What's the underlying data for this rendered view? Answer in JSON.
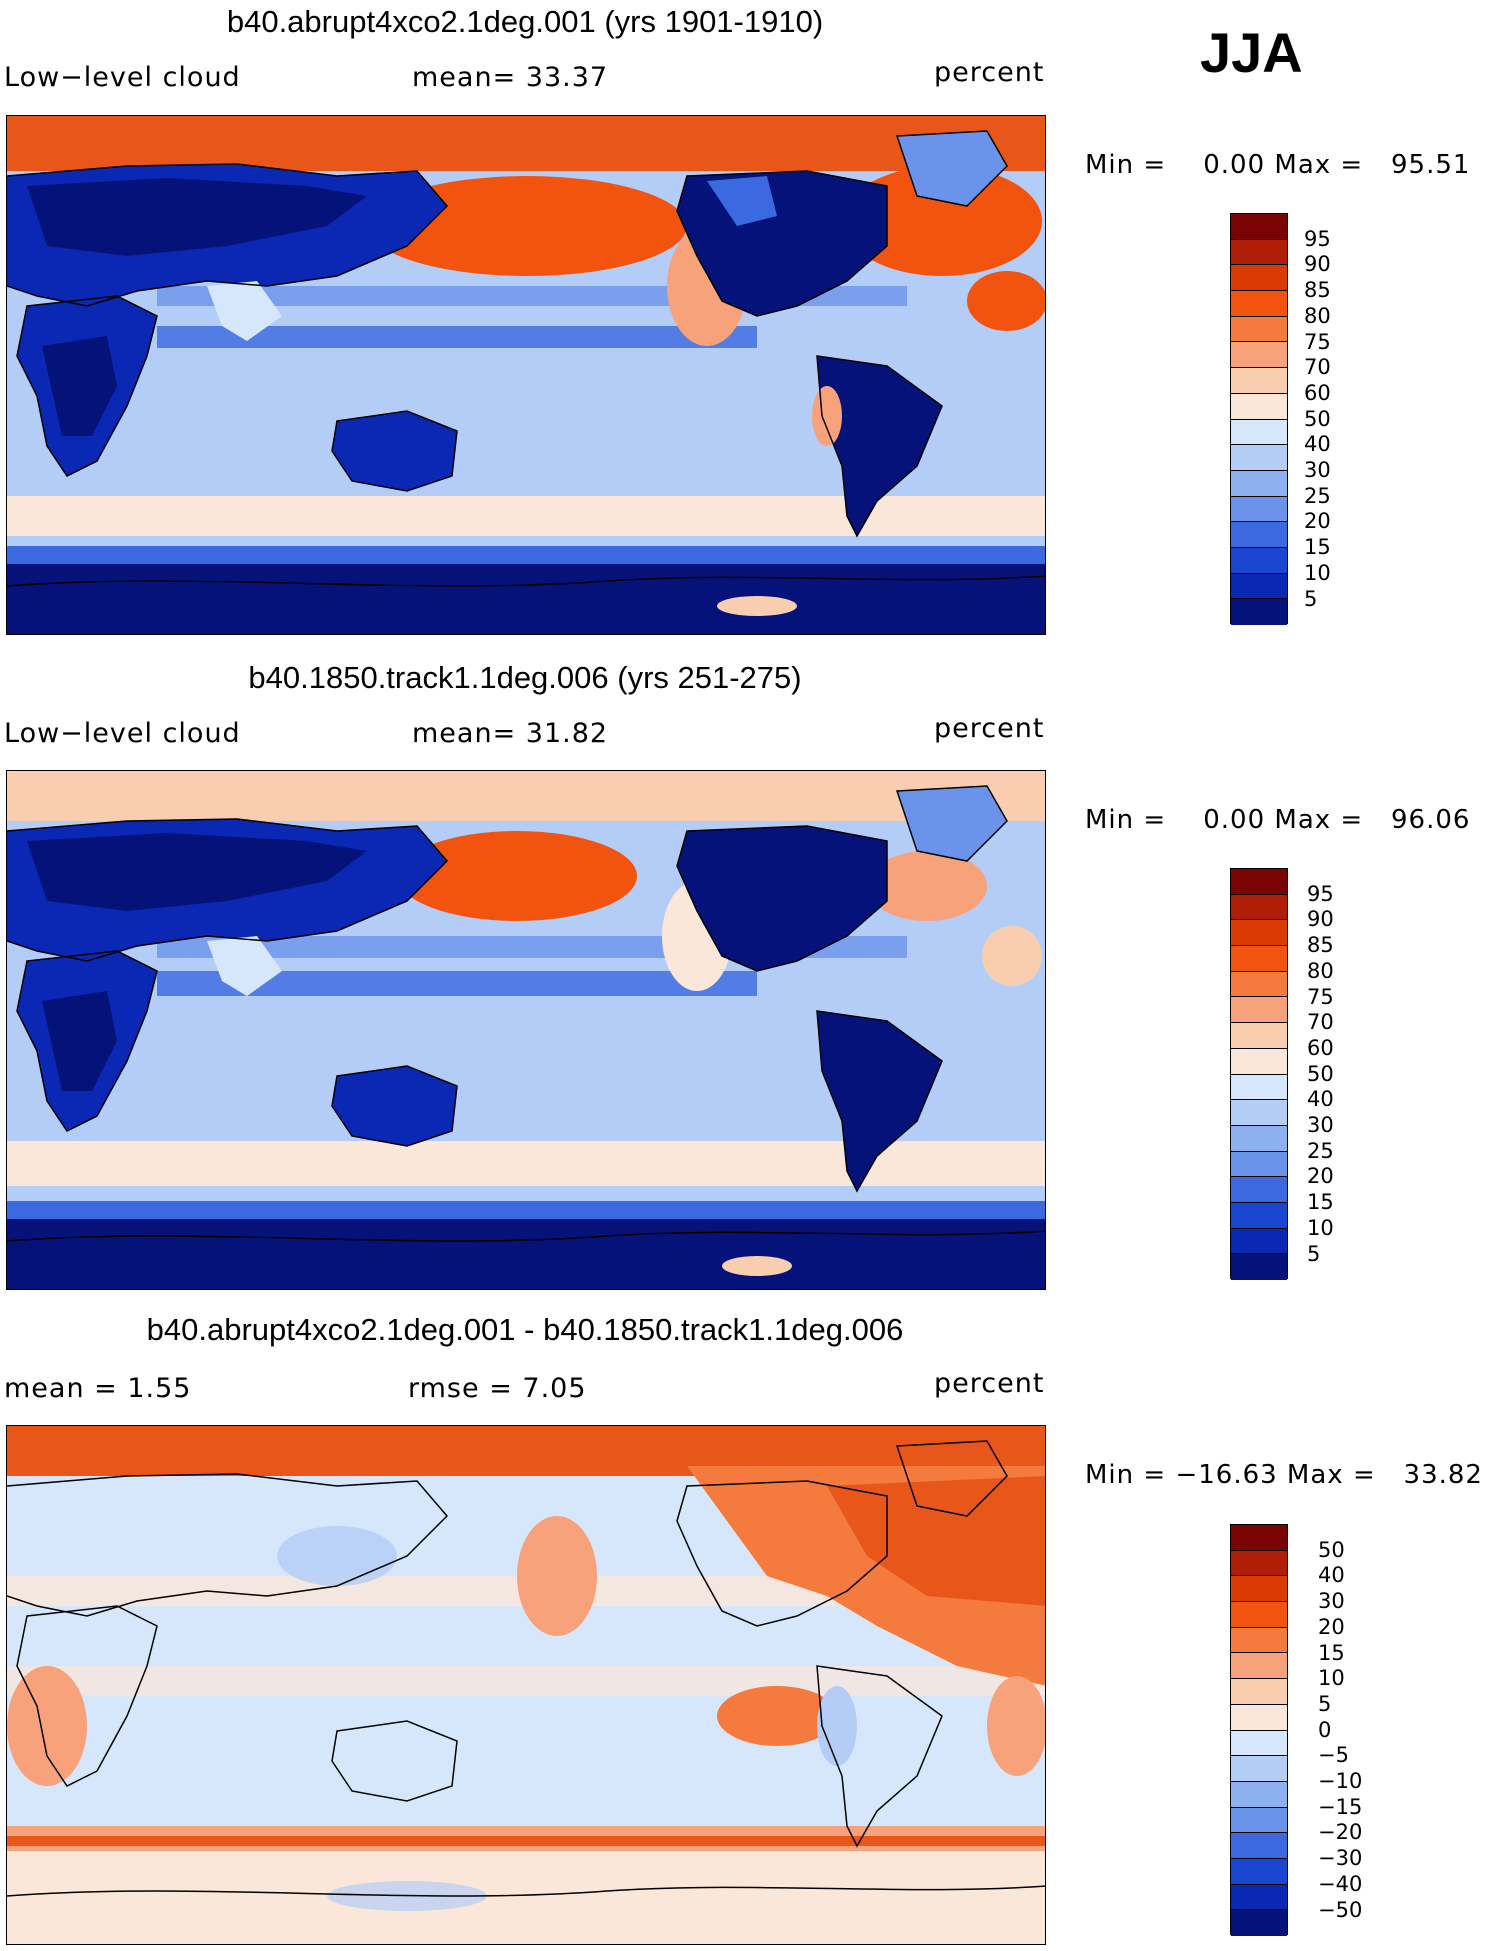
{
  "season": "JJA",
  "unit": "percent",
  "panels": [
    {
      "title": "b40.abrupt4xco2.1deg.001 (yrs 1901-1910)",
      "left_label": "Low−level cloud",
      "mid_label": "mean=   33.37",
      "right_label": "percent",
      "minmax": "Min =    0.00 Max =   95.51",
      "colorbar_labels": [
        "95",
        "90",
        "85",
        "80",
        "75",
        "70",
        "60",
        "50",
        "40",
        "30",
        "25",
        "20",
        "15",
        "10",
        "5"
      ]
    },
    {
      "title": "b40.1850.track1.1deg.006 (yrs 251-275)",
      "left_label": "Low−level cloud",
      "mid_label": "mean=   31.82",
      "right_label": "percent",
      "minmax": "Min =    0.00 Max =   96.06",
      "colorbar_labels": [
        "95",
        "90",
        "85",
        "80",
        "75",
        "70",
        "60",
        "50",
        "40",
        "30",
        "25",
        "20",
        "15",
        "10",
        "5"
      ]
    },
    {
      "title": "b40.abrupt4xco2.1deg.001 - b40.1850.track1.1deg.006",
      "left_label": "mean =    1.55",
      "mid_label": "rmse =    7.05",
      "right_label": "percent",
      "minmax": "Min = −16.63 Max =   33.82",
      "colorbar_labels": [
        "50",
        "40",
        "30",
        "20",
        "15",
        "10",
        "5",
        "0",
        "−5",
        "−10",
        "−15",
        "−20",
        "−30",
        "−40",
        "−50"
      ]
    }
  ],
  "colorbar_colors": [
    "#7a0403",
    "#b01d08",
    "#d93a06",
    "#f2540f",
    "#f57a3d",
    "#f7a27a",
    "#f9cdb0",
    "#fbe7da",
    "#d6e7fb",
    "#b3cdf6",
    "#8eb0f0",
    "#6b93ea",
    "#3b69e0",
    "#1a45d0",
    "#0a28b4",
    "#05127a"
  ]
}
